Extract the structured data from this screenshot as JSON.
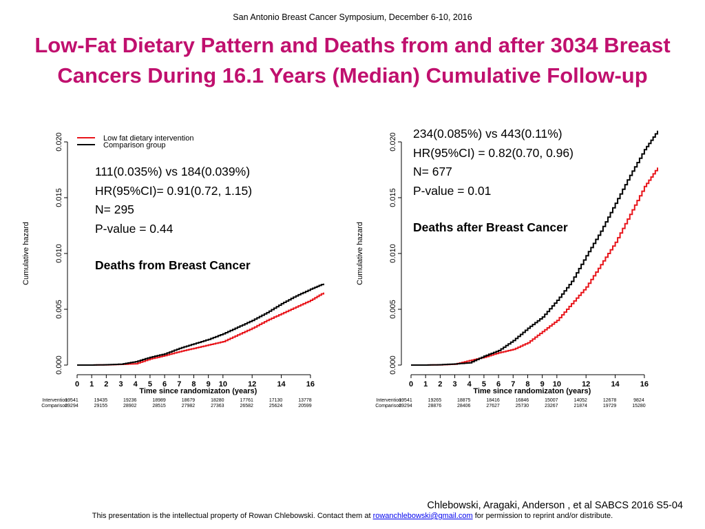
{
  "conference": "San Antonio Breast Cancer Symposium, December 6-10, 2016",
  "title_line1": "Low-Fat Dietary Pattern and Deaths from and after 3034 Breast",
  "title_line2": "Cancers During 16.1 Years (Median) Cumulative Follow-up",
  "citation": "Chlebowski, Aragaki, Anderson , et al SABCS 2016 S5-04",
  "footer": {
    "prefix": "This presentation is the intellectual property of Rowan Chlebowski.  Contact them at ",
    "email": "rowanchlebowski@gmail.com",
    "suffix": " for permission to reprint and/or distribute."
  },
  "colors": {
    "title": "#c0106e",
    "intervention": "#e8141a",
    "comparison": "#000000"
  },
  "chart_data": [
    {
      "type": "line",
      "ylabel": "Cumulative hazard",
      "xlabel": "Time since randomizaton (years)",
      "ylim": [
        0,
        0.02
      ],
      "xlim": [
        0,
        16.9
      ],
      "yticks": [
        "0.000",
        "0.005",
        "0.010",
        "0.015",
        "0.020"
      ],
      "xticks": [
        "0",
        "1",
        "2",
        "3",
        "4",
        "5",
        "6",
        "7",
        "8",
        "9",
        "10",
        "12",
        "14",
        "16"
      ],
      "legend_position": "top-left",
      "legend": [
        "Low fat dietary intervention",
        "Comparison group"
      ],
      "stats": [
        "111(0.035%) vs 184(0.039%)",
        "HR(95%CI)= 0.91(0.72, 1.15)",
        "N= 295",
        "P-value = 0.44"
      ],
      "headline": "Deaths from Breast Cancer",
      "series": [
        {
          "name": "Low fat dietary intervention",
          "x": [
            0,
            1,
            2,
            3,
            4,
            5,
            6,
            7,
            8,
            9,
            10,
            11,
            12,
            13,
            14,
            15,
            16,
            16.9
          ],
          "values": [
            0,
            0,
            2e-05,
            6e-05,
            0.00012,
            0.00055,
            0.00085,
            0.0012,
            0.0015,
            0.0018,
            0.0021,
            0.0027,
            0.0033,
            0.004,
            0.0046,
            0.0052,
            0.0058,
            0.0065
          ]
        },
        {
          "name": "Comparison group",
          "x": [
            0,
            1,
            2,
            3,
            4,
            5,
            6,
            7,
            8,
            9,
            10,
            11,
            12,
            13,
            14,
            15,
            16,
            16.9
          ],
          "values": [
            0,
            0,
            3e-05,
            8e-05,
            0.0003,
            0.0007,
            0.001,
            0.0015,
            0.0019,
            0.0023,
            0.0028,
            0.0034,
            0.004,
            0.0047,
            0.0055,
            0.0062,
            0.0068,
            0.0073
          ]
        }
      ],
      "risk_table": {
        "rows": [
          {
            "label": "Intervention",
            "values": [
              "19541",
              "19435",
              "19236",
              "18989",
              "18679",
              "18280",
              "17761",
              "17130",
              "13778"
            ]
          },
          {
            "label": "Comparison",
            "values": [
              "29294",
              "29155",
              "28902",
              "28515",
              "27982",
              "27363",
              "26582",
              "25624",
              "20599"
            ]
          }
        ],
        "at_years": [
          0,
          2,
          4,
          6,
          8,
          10,
          12,
          14,
          16
        ]
      }
    },
    {
      "type": "line",
      "ylabel": "Cumulative hazard",
      "xlabel": "Time since randomizaton (years)",
      "ylim": [
        0,
        0.02
      ],
      "xlim": [
        0,
        16.9
      ],
      "yticks": [
        "0.000",
        "0.005",
        "0.010",
        "0.015",
        "0.020"
      ],
      "xticks": [
        "0",
        "1",
        "2",
        "3",
        "4",
        "5",
        "6",
        "7",
        "8",
        "9",
        "10",
        "12",
        "14",
        "16"
      ],
      "stats": [
        "234(0.085%) vs 443(0.11%)",
        "HR(95%CI) = 0.82(0.70, 0.96)",
        "N= 677",
        "P-value = 0.01"
      ],
      "headline": "Deaths after Breast Cancer",
      "series": [
        {
          "name": "Low fat dietary intervention",
          "x": [
            0,
            1,
            2,
            3,
            4,
            5,
            6,
            7,
            8,
            9,
            10,
            11,
            12,
            13,
            14,
            15,
            16,
            16.9
          ],
          "values": [
            0,
            0,
            2e-05,
            8e-05,
            0.0004,
            0.0007,
            0.0011,
            0.0014,
            0.002,
            0.003,
            0.004,
            0.0055,
            0.007,
            0.009,
            0.011,
            0.0135,
            0.016,
            0.0177
          ]
        },
        {
          "name": "Comparison group",
          "x": [
            0,
            1,
            2,
            3,
            4,
            5,
            6,
            7,
            8,
            9,
            10,
            11,
            12,
            13,
            14,
            15,
            16,
            16.9
          ],
          "values": [
            0,
            0,
            3e-05,
            0.0001,
            0.0002,
            0.0008,
            0.0013,
            0.0022,
            0.0033,
            0.0043,
            0.0058,
            0.0075,
            0.0098,
            0.012,
            0.0145,
            0.017,
            0.0193,
            0.021
          ]
        }
      ],
      "risk_table": {
        "rows": [
          {
            "label": "Intervention",
            "values": [
              "19541",
              "19265",
              "18875",
              "18416",
              "16846",
              "15007",
              "14052",
              "12678",
              "9824"
            ]
          },
          {
            "label": "Comparison",
            "values": [
              "29294",
              "28876",
              "28406",
              "27627",
              "25730",
              "23267",
              "21874",
              "19729",
              "15280"
            ]
          }
        ],
        "at_years": [
          0,
          2,
          4,
          6,
          8,
          10,
          12,
          14,
          16
        ]
      }
    }
  ]
}
